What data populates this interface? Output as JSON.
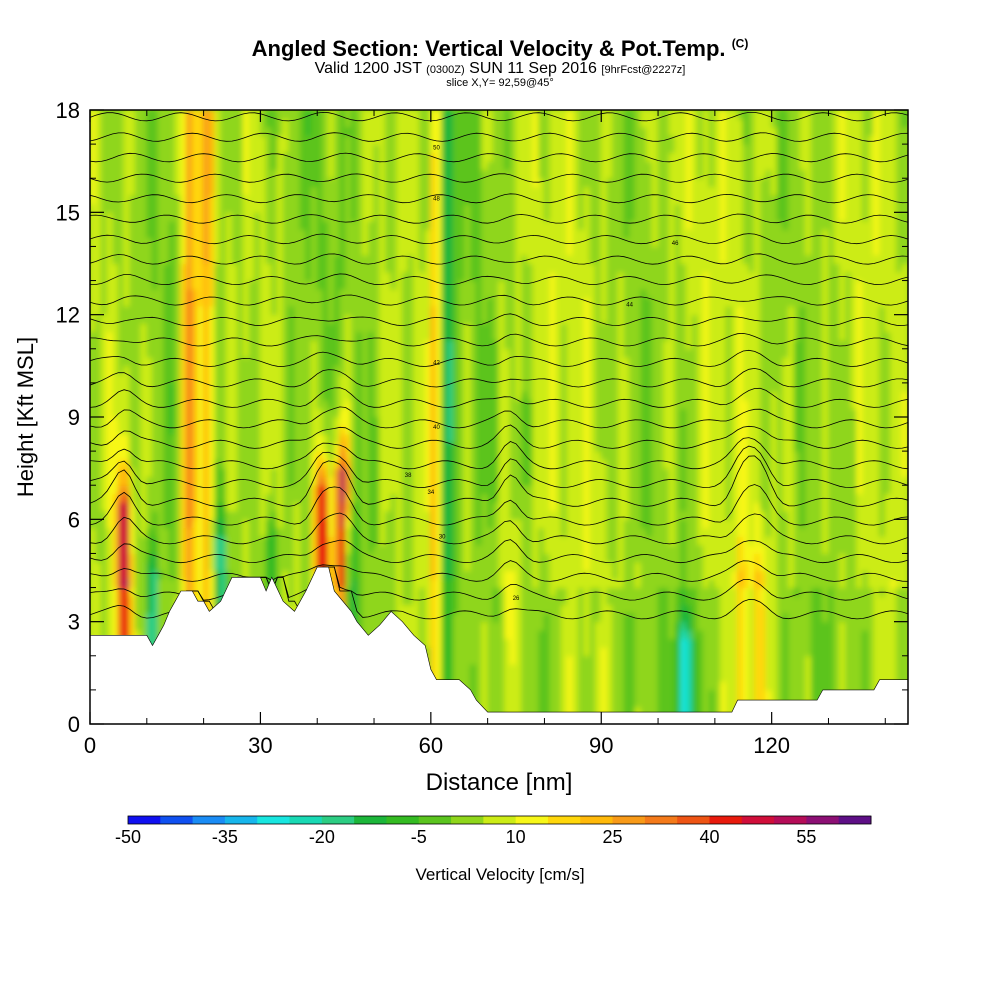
{
  "header": {
    "title_main": "Angled Section: Vertical Velocity & Pot.Temp.",
    "title_unit": "(C)",
    "sub_valid": "Valid 1200 JST",
    "sub_z": "(0300Z)",
    "sub_date": "SUN 11 Sep 2016",
    "sub_fcst": "[9hrFcst@2227z]",
    "slice": "slice X,Y= 92,59@45°"
  },
  "chart_data": {
    "type": "heatmap",
    "xlabel": "Distance [nm]",
    "ylabel": "Height [Kft MSL]",
    "xlim": [
      0,
      144
    ],
    "ylim": [
      0,
      18
    ],
    "x_ticks": [
      "0",
      "30",
      "60",
      "90",
      "120"
    ],
    "y_ticks": [
      "0",
      "3",
      "6",
      "9",
      "12",
      "15",
      "18"
    ],
    "colorbar": {
      "label": "Vertical Velocity [cm/s]",
      "tick_labels": [
        "-50",
        "-35",
        "-20",
        "-5",
        "10",
        "25",
        "40",
        "55"
      ],
      "range": [
        -50,
        60
      ],
      "step": 5,
      "colors": [
        "#1010f0",
        "#1050f0",
        "#1a8cf5",
        "#17b6ec",
        "#18e6e0",
        "#19d9b4",
        "#2ccd83",
        "#1cb63a",
        "#34bb22",
        "#5bc41e",
        "#8fd61b",
        "#ccec16",
        "#f7f719",
        "#ffd70b",
        "#ffb90a",
        "#f89a18",
        "#f47a1a",
        "#ee5414",
        "#e81a0d",
        "#d00e3a",
        "#b50d58",
        "#8c0f74",
        "#5e0f86"
      ]
    },
    "terrain_kft": [
      [
        0,
        2.6
      ],
      [
        10,
        2.6
      ],
      [
        11,
        2.3
      ],
      [
        12,
        2.6
      ],
      [
        13,
        2.9
      ],
      [
        14,
        3.3
      ],
      [
        15,
        3.6
      ],
      [
        16,
        3.9
      ],
      [
        18,
        3.9
      ],
      [
        19,
        3.6
      ],
      [
        20,
        3.6
      ],
      [
        21,
        3.3
      ],
      [
        23,
        3.6
      ],
      [
        25,
        4.3
      ],
      [
        30,
        4.3
      ],
      [
        31,
        3.9
      ],
      [
        32,
        4.3
      ],
      [
        34,
        3.6
      ],
      [
        36,
        3.3
      ],
      [
        38,
        3.9
      ],
      [
        40,
        4.6
      ],
      [
        42,
        4.6
      ],
      [
        43,
        3.9
      ],
      [
        46,
        3.3
      ],
      [
        47,
        3.0
      ],
      [
        49,
        2.6
      ],
      [
        51,
        2.9
      ],
      [
        53,
        3.3
      ],
      [
        55,
        3.0
      ],
      [
        57,
        2.6
      ],
      [
        59,
        2.3
      ],
      [
        60,
        1.6
      ],
      [
        61,
        1.3
      ],
      [
        65,
        1.3
      ],
      [
        67,
        1.0
      ],
      [
        68,
        0.7
      ],
      [
        70,
        0.35
      ],
      [
        113,
        0.35
      ],
      [
        114,
        0.7
      ],
      [
        128,
        0.7
      ],
      [
        129,
        1.0
      ],
      [
        138,
        1.0
      ],
      [
        139,
        1.3
      ],
      [
        144,
        1.3
      ]
    ],
    "isentropes_degC": {
      "levels": [
        26,
        27,
        28,
        29,
        30,
        31,
        32,
        33,
        34,
        35,
        36,
        37,
        38,
        39,
        40,
        41,
        42,
        43,
        44,
        45,
        46,
        47,
        48,
        49,
        50,
        51,
        52,
        53
      ],
      "labels": [
        "26",
        "30",
        "34",
        "38",
        "40",
        "42",
        "44",
        "46",
        "48",
        "50"
      ]
    },
    "updraft_cores": [
      {
        "x": 6,
        "ytop": 6.5,
        "w": 55
      },
      {
        "x": 17.5,
        "ytop": 18,
        "w": 55
      },
      {
        "x": 20.5,
        "ytop": 18,
        "w": 45
      },
      {
        "x": 41,
        "ytop": 7,
        "w": 55
      },
      {
        "x": 44.5,
        "ytop": 7.5,
        "w": 60
      },
      {
        "x": 61,
        "ytop": 18,
        "w": 30
      },
      {
        "x": 74,
        "ytop": 4,
        "w": 25
      },
      {
        "x": 115,
        "ytop": 4.5,
        "w": 20
      },
      {
        "x": 118,
        "ytop": 4.5,
        "w": 20
      }
    ],
    "downdraft_cores": [
      {
        "x": 11,
        "ytop": 4.5,
        "w": -20
      },
      {
        "x": 23,
        "ytop": 5.5,
        "w": -20
      },
      {
        "x": 32,
        "ytop": 5.5,
        "w": -15
      },
      {
        "x": 45.5,
        "ytop": 5.5,
        "w": -25
      },
      {
        "x": 63,
        "ytop": 18,
        "w": -20
      },
      {
        "x": 105,
        "ytop": 2.5,
        "w": -35
      }
    ]
  }
}
